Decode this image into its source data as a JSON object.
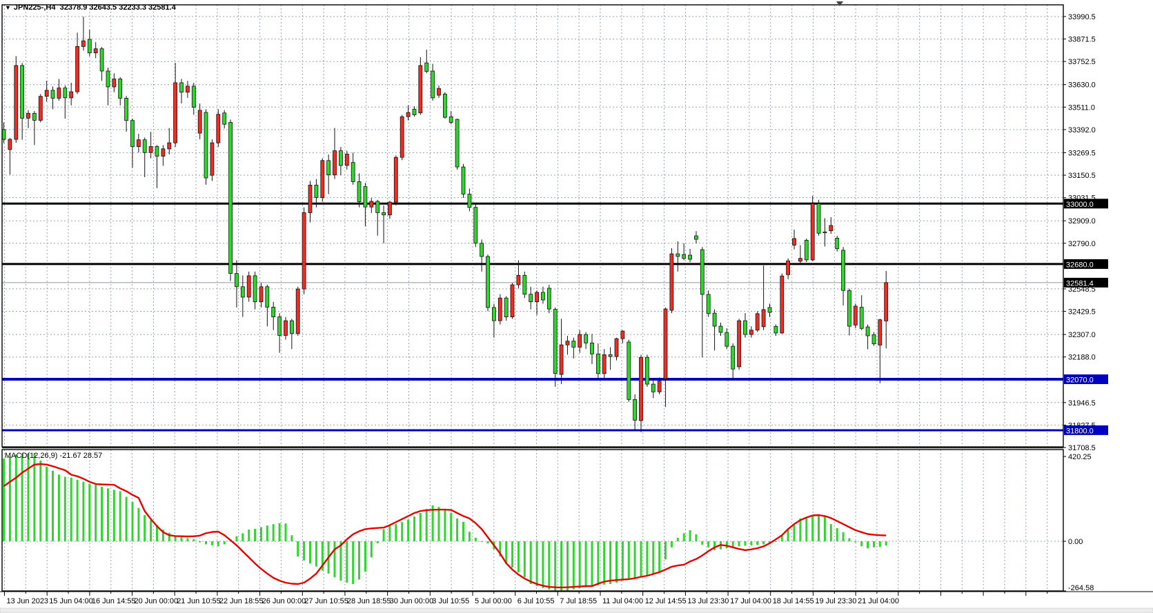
{
  "title": {
    "dropdown_icon": "▼",
    "symbol": "JPN225-,H4",
    "ohlc": "32378.9 32643.5 32233.3 32581.4"
  },
  "indicator": {
    "label": "MACD(12,26,9)",
    "values": "-21.67 28.57"
  },
  "price_axis": {
    "ticks": [
      {
        "label": "33990.5",
        "price": 33990.5
      },
      {
        "label": "33871.5",
        "price": 33871.5
      },
      {
        "label": "33752.5",
        "price": 33752.5
      },
      {
        "label": "33630.0",
        "price": 33630.0
      },
      {
        "label": "33511.0",
        "price": 33511.0
      },
      {
        "label": "33392.0",
        "price": 33392.0
      },
      {
        "label": "33269.5",
        "price": 33269.5
      },
      {
        "label": "33150.5",
        "price": 33150.5
      },
      {
        "label": "33031.5",
        "price": 33031.5
      },
      {
        "label": "32909.0",
        "price": 32909.0
      },
      {
        "label": "32790.0",
        "price": 32790.0
      },
      {
        "label": "32548.5",
        "price": 32548.5
      },
      {
        "label": "32429.5",
        "price": 32429.5
      },
      {
        "label": "32307.0",
        "price": 32307.0
      },
      {
        "label": "32188.0",
        "price": 32188.0
      },
      {
        "label": "31946.5",
        "price": 31946.5
      },
      {
        "label": "31827.5",
        "price": 31827.5
      },
      {
        "label": "31708.5",
        "price": 31708.5
      }
    ],
    "special_labels": [
      {
        "label": "33000.0",
        "price": 33000.0,
        "bg": "#000000"
      },
      {
        "label": "32680.0",
        "price": 32680.0,
        "bg": "#000000"
      },
      {
        "label": "32581.4",
        "price": 32581.4,
        "bg": "#000000"
      },
      {
        "label": "32070.0",
        "price": 32070.0,
        "bg": "#0000bf"
      },
      {
        "label": "31800.0",
        "price": 31800.0,
        "bg": "#0000bf"
      }
    ]
  },
  "macd_axis": {
    "ticks": [
      {
        "label": "420.25",
        "value": 420.25
      },
      {
        "label": "0.00",
        "value": 0
      },
      {
        "label": "-264.58",
        "value": -264.58
      }
    ]
  },
  "time_axis": {
    "labels": [
      "13 Jun 2023",
      "15 Jun 04:00",
      "16 Jun 14:55",
      "20 Jun 00:00",
      "21 Jun 10:55",
      "22 Jun 18:55",
      "26 Jun 00:00",
      "27 Jun 10:55",
      "28 Jun 18:55",
      "30 Jun 00:00",
      "3 Jul 10:55",
      "5 Jul 00:00",
      "6 Jul 10:55",
      "7 Jul 18:55",
      "11 Jul 04:00",
      "12 Jul 14:55",
      "13 Jul 23:30",
      "17 Jul 04:00",
      "18 Jul 14:55",
      "19 Jul 23:30",
      "21 Jul 04:00"
    ]
  },
  "levels": [
    {
      "price": 33000.0,
      "color": "#000000",
      "width": 3
    },
    {
      "price": 32680.0,
      "color": "#000000",
      "width": 3
    },
    {
      "price": 32070.0,
      "color": "#0000bf",
      "width": 4
    },
    {
      "price": 31800.0,
      "color": "#0000bf",
      "width": 3
    }
  ],
  "current_price": {
    "value": 32581.4,
    "line_color": "#8f969e"
  },
  "colors": {
    "bull": "#ee2e24",
    "bear": "#2ed62e",
    "outline": "#111111",
    "macd_histogram": "#2ed62e",
    "macd_signal": "#e60000",
    "grid": "#96a2b2",
    "axis_text": "#000000",
    "background": "#ffffff"
  },
  "chart_data": {
    "type": "candlestick_with_macd",
    "symbol": "JPN225-",
    "timeframe": "H4",
    "title": "JPN225-,H4 32378.9 32643.5 32233.3 32581.4",
    "up_color_convention": "red_is_bullish_green_is_bearish",
    "y_axis_range": [
      31708.5,
      33990.5
    ],
    "macd_range": [
      -264.58,
      420.25
    ],
    "ohlc_order": "open_high_low_close",
    "candles": [
      [
        33392,
        33430,
        33320,
        33340
      ],
      [
        33286,
        33348,
        33154,
        33340
      ],
      [
        33340,
        33781,
        33322,
        33731
      ],
      [
        33731,
        33745,
        33338,
        33452
      ],
      [
        33452,
        33495,
        33400,
        33478
      ],
      [
        33478,
        33490,
        33310,
        33441
      ],
      [
        33441,
        33580,
        33430,
        33568
      ],
      [
        33568,
        33650,
        33540,
        33600
      ],
      [
        33600,
        33620,
        33500,
        33558
      ],
      [
        33558,
        33660,
        33545,
        33612
      ],
      [
        33612,
        33625,
        33450,
        33560
      ],
      [
        33560,
        33640,
        33520,
        33592
      ],
      [
        33592,
        33905,
        33580,
        33832
      ],
      [
        33832,
        33990,
        33810,
        33862
      ],
      [
        33870,
        33920,
        33780,
        33798
      ],
      [
        33798,
        33855,
        33770,
        33820
      ],
      [
        33820,
        33830,
        33650,
        33702
      ],
      [
        33702,
        33720,
        33520,
        33618
      ],
      [
        33618,
        33690,
        33590,
        33660
      ],
      [
        33660,
        33670,
        33520,
        33558
      ],
      [
        33558,
        33570,
        33380,
        33440
      ],
      [
        33440,
        33450,
        33190,
        33302
      ],
      [
        33302,
        33370,
        33270,
        33338
      ],
      [
        33338,
        33350,
        33140,
        33270
      ],
      [
        33270,
        33380,
        33240,
        33302
      ],
      [
        33302,
        33310,
        33082,
        33251
      ],
      [
        33251,
        33310,
        33200,
        33290
      ],
      [
        33290,
        33400,
        33260,
        33322
      ],
      [
        33322,
        33745,
        33300,
        33640
      ],
      [
        33640,
        33660,
        33530,
        33590
      ],
      [
        33590,
        33650,
        33560,
        33622
      ],
      [
        33622,
        33640,
        33470,
        33510
      ],
      [
        33373,
        33530,
        33340,
        33494
      ],
      [
        33483,
        33500,
        33100,
        33136
      ],
      [
        33150,
        33340,
        33120,
        33322
      ],
      [
        33322,
        33500,
        33300,
        33473
      ],
      [
        33480,
        33495,
        33398,
        33420
      ],
      [
        33430,
        33445,
        32590,
        32630
      ],
      [
        32630,
        32700,
        32450,
        32560
      ],
      [
        32560,
        32620,
        32400,
        32505
      ],
      [
        32505,
        32640,
        32480,
        32618
      ],
      [
        32618,
        32640,
        32440,
        32480
      ],
      [
        32480,
        32580,
        32450,
        32560
      ],
      [
        32560,
        32570,
        32350,
        32452
      ],
      [
        32452,
        32480,
        32330,
        32400
      ],
      [
        32400,
        32420,
        32210,
        32302
      ],
      [
        32302,
        32400,
        32280,
        32380
      ],
      [
        32380,
        32390,
        32230,
        32312
      ],
      [
        32312,
        32560,
        32300,
        32548
      ],
      [
        32548,
        32980,
        32520,
        32952
      ],
      [
        32952,
        33120,
        32900,
        33098
      ],
      [
        33098,
        33130,
        32980,
        33032
      ],
      [
        33032,
        33240,
        33010,
        33228
      ],
      [
        33228,
        33260,
        33050,
        33152
      ],
      [
        33152,
        33400,
        33130,
        33280
      ],
      [
        33280,
        33300,
        33150,
        33202
      ],
      [
        33202,
        33280,
        33180,
        33262
      ],
      [
        33218,
        33270,
        33100,
        33116
      ],
      [
        33116,
        33160,
        32980,
        33010
      ],
      [
        33090,
        33110,
        32880,
        32982
      ],
      [
        32982,
        33030,
        32950,
        33012
      ],
      [
        33012,
        33020,
        32830,
        32952
      ],
      [
        32952,
        32990,
        32790,
        32940
      ],
      [
        32940,
        33015,
        32920,
        33008
      ],
      [
        33008,
        33255,
        32990,
        33245
      ],
      [
        33245,
        33470,
        33230,
        33460
      ],
      [
        33460,
        33520,
        33440,
        33482
      ],
      [
        33500,
        33515,
        33460,
        33470
      ],
      [
        33480,
        33775,
        33470,
        33731
      ],
      [
        33745,
        33815,
        33690,
        33700
      ],
      [
        33702,
        33740,
        33545,
        33560
      ],
      [
        33574,
        33625,
        33560,
        33610
      ],
      [
        33580,
        33590,
        33450,
        33457
      ],
      [
        33460,
        33490,
        33420,
        33430
      ],
      [
        33446,
        33450,
        33180,
        33194
      ],
      [
        33194,
        33210,
        33030,
        33050
      ],
      [
        33050,
        33080,
        32960,
        32980
      ],
      [
        32980,
        33000,
        32770,
        32790
      ],
      [
        32790,
        32810,
        32640,
        32720
      ],
      [
        32720,
        32730,
        32430,
        32450
      ],
      [
        32450,
        32470,
        32290,
        32380
      ],
      [
        32380,
        32520,
        32360,
        32500
      ],
      [
        32500,
        32510,
        32380,
        32400
      ],
      [
        32400,
        32580,
        32390,
        32570
      ],
      [
        32570,
        32700,
        32550,
        32620
      ],
      [
        32620,
        32640,
        32500,
        32520
      ],
      [
        32520,
        32560,
        32440,
        32480
      ],
      [
        32480,
        32540,
        32410,
        32530
      ],
      [
        32530,
        32560,
        32470,
        32490
      ],
      [
        32552,
        32570,
        32420,
        32442
      ],
      [
        32440,
        32450,
        32030,
        32100
      ],
      [
        32095,
        32390,
        32044,
        32252
      ],
      [
        32252,
        32300,
        32200,
        32272
      ],
      [
        32272,
        32290,
        32180,
        32240
      ],
      [
        32240,
        32330,
        32210,
        32307
      ],
      [
        32307,
        32320,
        32230,
        32262
      ],
      [
        32262,
        32310,
        32150,
        32204
      ],
      [
        32204,
        32260,
        32077,
        32100
      ],
      [
        32100,
        32230,
        32070,
        32200
      ],
      [
        32200,
        32240,
        32120,
        32190
      ],
      [
        32190,
        32290,
        32170,
        32285
      ],
      [
        32285,
        32330,
        32260,
        32325
      ],
      [
        32267,
        32280,
        31950,
        31963
      ],
      [
        31963,
        31990,
        31805,
        31853
      ],
      [
        31851,
        32200,
        31790,
        32186
      ],
      [
        32186,
        32200,
        32030,
        32044
      ],
      [
        32044,
        32070,
        31970,
        32003
      ],
      [
        32003,
        32080,
        31990,
        32060
      ],
      [
        32073,
        32450,
        31923,
        32442
      ],
      [
        32435,
        32764,
        32420,
        32734
      ],
      [
        32734,
        32800,
        32640,
        32720
      ],
      [
        32730,
        32790,
        32700,
        32710
      ],
      [
        32727,
        32760,
        32690,
        32705
      ],
      [
        32829,
        32854,
        32790,
        32811
      ],
      [
        32756,
        32770,
        32186,
        32519
      ],
      [
        32519,
        32540,
        32400,
        32417
      ],
      [
        32420,
        32440,
        32222,
        32351
      ],
      [
        32351,
        32370,
        32300,
        32318
      ],
      [
        32318,
        32340,
        32230,
        32245
      ],
      [
        32245,
        32260,
        32066,
        32124
      ],
      [
        32136,
        32390,
        32120,
        32380
      ],
      [
        32380,
        32420,
        32290,
        32307
      ],
      [
        32307,
        32350,
        32290,
        32330
      ],
      [
        32330,
        32430,
        32320,
        32417
      ],
      [
        32348,
        32672,
        32330,
        32439
      ],
      [
        32450,
        32470,
        32400,
        32424
      ],
      [
        32350,
        32360,
        32300,
        32315
      ],
      [
        32315,
        32630,
        32310,
        32617
      ],
      [
        32624,
        32710,
        32600,
        32697
      ],
      [
        32780,
        32862,
        32758,
        32815
      ],
      [
        32695,
        32780,
        32680,
        32710
      ],
      [
        32806,
        32815,
        32690,
        32702
      ],
      [
        32702,
        33041,
        32695,
        33000
      ],
      [
        32999,
        33020,
        32830,
        32843
      ],
      [
        32850,
        32923,
        32773,
        32845
      ],
      [
        32856,
        32928,
        32840,
        32884
      ],
      [
        32817,
        32830,
        32746,
        32761
      ],
      [
        32753,
        32770,
        32461,
        32540
      ],
      [
        32540,
        32550,
        32302,
        32351
      ],
      [
        32357,
        32470,
        32340,
        32457
      ],
      [
        32451,
        32515,
        32330,
        32339
      ],
      [
        32347,
        32360,
        32229,
        32300
      ],
      [
        32305,
        32320,
        32247,
        32257
      ],
      [
        32251,
        32390,
        32049,
        32385
      ],
      [
        32378.9,
        32643.5,
        32233.3,
        32581.4
      ]
    ],
    "macd": {
      "label": "MACD(12,26,9)",
      "main_current": -21.67,
      "signal_current": 28.57,
      "histogram": [
        410,
        420,
        430,
        435,
        436,
        437,
        400,
        370,
        350,
        330,
        320,
        315,
        305,
        295,
        285,
        280,
        270,
        262,
        255,
        248,
        220,
        195,
        165,
        130,
        105,
        80,
        58,
        42,
        27,
        20,
        15,
        10,
        -5,
        -15,
        -20,
        -24,
        -15,
        10,
        25,
        40,
        58,
        62,
        70,
        78,
        85,
        90,
        88,
        30,
        -75,
        -95,
        -110,
        -125,
        -145,
        -160,
        -178,
        -195,
        -205,
        -212,
        -190,
        -150,
        -80,
        -10,
        60,
        78,
        85,
        95,
        108,
        123,
        140,
        160,
        178,
        170,
        155,
        140,
        113,
        96,
        47,
        17,
        0,
        -11,
        -40,
        -75,
        -109,
        -130,
        -154,
        -178,
        -212,
        -222,
        -232,
        -239,
        -246,
        -249,
        -246,
        -238,
        -232,
        -228,
        -222,
        -218,
        -215,
        -212,
        -205,
        -195,
        -185,
        -180,
        -175,
        -171,
        -160,
        -150,
        -90,
        -30,
        17,
        40,
        55,
        35,
        -17,
        -30,
        -44,
        -40,
        -35,
        -30,
        -25,
        -22,
        -20,
        -18,
        -15,
        -10,
        0,
        27,
        55,
        80,
        113,
        120,
        130,
        133,
        128,
        85,
        65,
        45,
        15,
        -5,
        -25,
        -35,
        -30,
        -28,
        -21.67
      ],
      "signal": [
        273,
        295,
        315,
        340,
        360,
        380,
        383,
        380,
        372,
        362,
        352,
        330,
        322,
        310,
        295,
        284,
        282,
        281,
        280,
        262,
        248,
        230,
        215,
        150,
        110,
        75,
        45,
        30,
        26,
        25,
        24,
        25,
        28,
        40,
        46,
        48,
        30,
        5,
        -20,
        -50,
        -80,
        -110,
        -137,
        -160,
        -181,
        -195,
        -205,
        -210,
        -212,
        -205,
        -185,
        -160,
        -120,
        -80,
        -40,
        -20,
        10,
        35,
        50,
        60,
        64,
        66,
        68,
        80,
        95,
        110,
        125,
        140,
        150,
        154,
        156,
        157,
        157,
        155,
        140,
        125,
        113,
        90,
        60,
        20,
        -20,
        -60,
        -109,
        -140,
        -165,
        -185,
        -200,
        -212,
        -220,
        -226,
        -228,
        -229,
        -228,
        -226,
        -224,
        -222,
        -222,
        -210,
        -200,
        -195,
        -192,
        -190,
        -188,
        -183,
        -176,
        -171,
        -162,
        -153,
        -140,
        -126,
        -120,
        -116,
        -100,
        -88,
        -70,
        -49,
        -30,
        -18,
        -22,
        -30,
        -38,
        -44,
        -40,
        -34,
        -25,
        -10,
        10,
        30,
        60,
        85,
        105,
        118,
        128,
        130,
        125,
        115,
        100,
        85,
        70,
        55,
        45,
        36,
        32,
        30,
        28.57
      ]
    }
  }
}
